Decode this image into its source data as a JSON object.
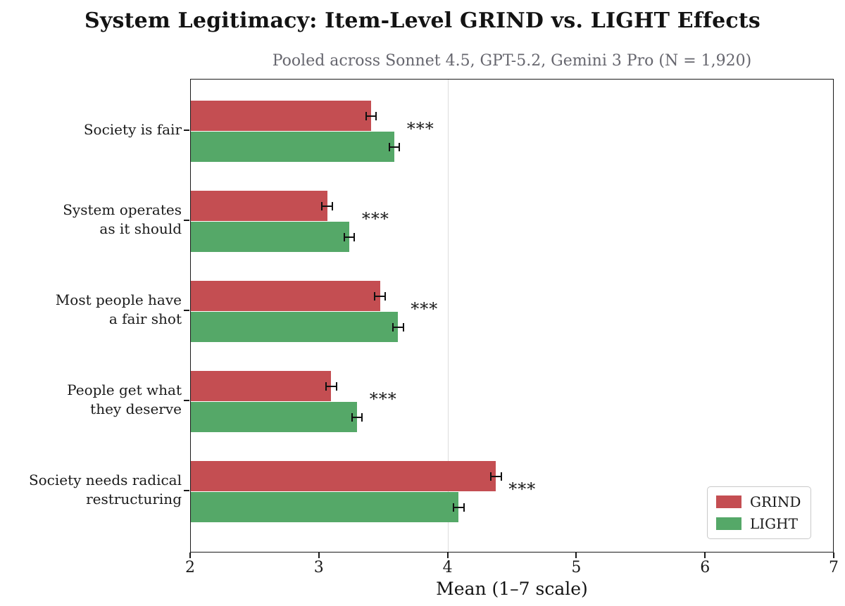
{
  "title": "System Legitimacy: Item-Level GRIND vs. LIGHT Effects",
  "subtitle": "Pooled across Sonnet 4.5, GPT-5.2, Gemini 3 Pro  (N = 1,920)",
  "colors": {
    "grind": "#c44e52",
    "light": "#55a868",
    "axis": "#1a1a1a",
    "subtitle_gray": "#66666e",
    "reference_line": "#dcdcdc",
    "error_bar": "#111111"
  },
  "legend": {
    "entries": [
      {
        "label": "GRIND",
        "color_key": "grind"
      },
      {
        "label": "LIGHT",
        "color_key": "light"
      }
    ]
  },
  "chart_data": {
    "type": "bar",
    "orientation": "horizontal",
    "title": "System Legitimacy: Item-Level GRIND vs. LIGHT Effects",
    "subtitle": "Pooled across Sonnet 4.5, GPT-5.2, Gemini 3 Pro  (N = 1,920)",
    "xlabel": "Mean (1–7 scale)",
    "ylabel": "",
    "xlim": [
      2,
      7
    ],
    "xticks": [
      2,
      3,
      4,
      5,
      6,
      7
    ],
    "reference_line_x": 4,
    "grid": false,
    "legend_position": "lower right",
    "categories": [
      "Society is fair",
      "System operates as it should",
      "Most people have a fair shot",
      "People get what they deserve",
      "Society needs radical restructuring"
    ],
    "category_label_lines": [
      [
        "Society is fair"
      ],
      [
        "System operates",
        "as it should"
      ],
      [
        "Most people have",
        "a fair shot"
      ],
      [
        "People get what",
        "they deserve"
      ],
      [
        "Society needs radical",
        "restructuring"
      ]
    ],
    "series": [
      {
        "name": "GRIND",
        "values": [
          3.4,
          3.06,
          3.47,
          3.09,
          4.37
        ],
        "errors": [
          0.04,
          0.04,
          0.04,
          0.04,
          0.04
        ]
      },
      {
        "name": "LIGHT",
        "values": [
          3.58,
          3.23,
          3.61,
          3.29,
          4.08
        ],
        "errors": [
          0.04,
          0.04,
          0.04,
          0.04,
          0.04
        ]
      }
    ],
    "significance": [
      "***",
      "***",
      "***",
      "***",
      "***"
    ]
  }
}
